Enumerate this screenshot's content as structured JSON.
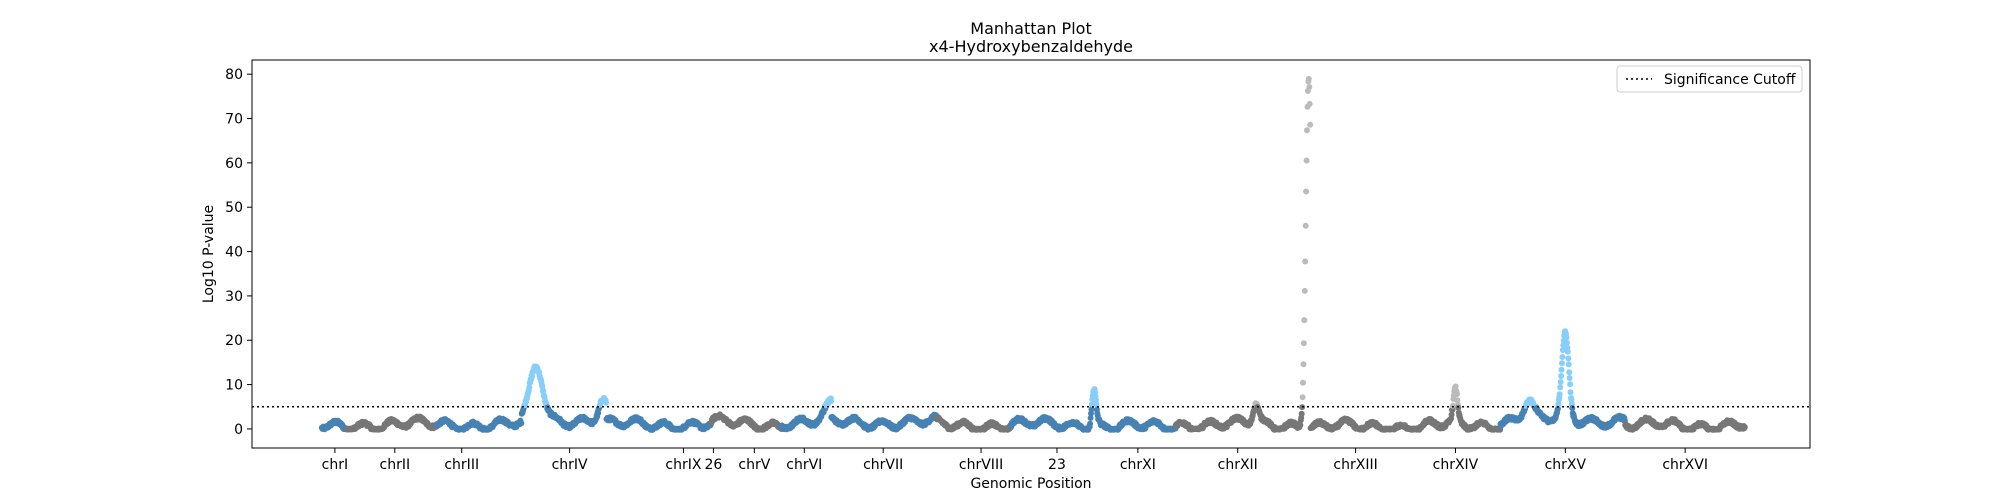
{
  "chart_data": {
    "type": "scatter",
    "title": "Manhattan Plot",
    "subtitle": "x4-Hydroxybenzaldehyde",
    "xlabel": "Genomic Position",
    "ylabel": "Log10 P-value",
    "ylim": [
      -4.3,
      83.2
    ],
    "yticks": [
      0,
      10,
      20,
      30,
      40,
      50,
      60,
      70,
      80
    ],
    "significance_cutoff": 5,
    "legend": {
      "position": "top-right",
      "entries": [
        {
          "label": "Significance Cutoff",
          "style": "dotted",
          "color": "#000000"
        }
      ]
    },
    "colors": {
      "odd_chromosome": "#4682b4",
      "even_chromosome": "#777777",
      "odd_significant": "#87cefa",
      "even_significant": "#bbbbbb"
    },
    "chromosomes": [
      {
        "tick_label": "chrI",
        "tick": 333,
        "start": 320,
        "end": 345,
        "parity": "odd",
        "baseline": 0.5
      },
      {
        "tick_label": "chrII",
        "tick": 393,
        "start": 345,
        "end": 435,
        "parity": "even",
        "baseline": 1.0
      },
      {
        "tick_label": "chrIII",
        "tick": 460,
        "start": 435,
        "end": 520,
        "parity": "odd",
        "baseline": 1.0
      },
      {
        "tick_label": "chrIV",
        "tick": 568,
        "start": 520,
        "end": 605,
        "parity": "odd",
        "baseline": 2.0
      },
      {
        "tick_label": "chrIX",
        "tick": 682,
        "start": 605,
        "end": 710,
        "parity": "odd",
        "baseline": 1.0
      },
      {
        "tick_label": "26",
        "tick": 712,
        "start": 710,
        "end": 730,
        "parity": "even",
        "baseline": 1.5
      },
      {
        "tick_label": "chrV",
        "tick": 753,
        "start": 730,
        "end": 780,
        "parity": "even",
        "baseline": 1.0
      },
      {
        "tick_label": "chrVI",
        "tick": 803,
        "start": 780,
        "end": 830,
        "parity": "odd",
        "baseline": 1.5
      },
      {
        "tick_label": "chrVII",
        "tick": 882,
        "start": 830,
        "end": 935,
        "parity": "odd",
        "baseline": 1.5
      },
      {
        "tick_label": "chrVIII",
        "tick": 980,
        "start": 935,
        "end": 1010,
        "parity": "even",
        "baseline": 0.8
      },
      {
        "tick_label": "23",
        "tick": 1056,
        "start": 1010,
        "end": 1100,
        "parity": "odd",
        "baseline": 1.0
      },
      {
        "tick_label": "chrXI",
        "tick": 1137,
        "start": 1100,
        "end": 1175,
        "parity": "odd",
        "baseline": 0.5
      },
      {
        "tick_label": "chrXII",
        "tick": 1237,
        "start": 1175,
        "end": 1310,
        "parity": "even",
        "baseline": 1.0
      },
      {
        "tick_label": "chrXIII",
        "tick": 1355,
        "start": 1310,
        "end": 1425,
        "parity": "even",
        "baseline": 0.5
      },
      {
        "tick_label": "chrXIV",
        "tick": 1455,
        "start": 1425,
        "end": 1500,
        "parity": "even",
        "baseline": 0.8
      },
      {
        "tick_label": "chrXV",
        "tick": 1565,
        "start": 1500,
        "end": 1625,
        "parity": "odd",
        "baseline": 2.0
      },
      {
        "tick_label": "chrXVI",
        "tick": 1685,
        "start": 1625,
        "end": 1745,
        "parity": "even",
        "baseline": 0.8
      }
    ],
    "peaks": [
      {
        "chromosome": "chrIV",
        "center": 535,
        "height": 12,
        "width": 9
      },
      {
        "chromosome": "chrIV",
        "center": 601,
        "height": 4.5,
        "width": 6
      },
      {
        "chromosome": "chrVI",
        "center": 832,
        "height": 4,
        "width": 10
      },
      {
        "chromosome": "23",
        "center": 1093,
        "height": 8.5,
        "width": 3
      },
      {
        "chromosome": "chrXII",
        "center": 1255,
        "height": 4.5,
        "width": 4
      },
      {
        "chromosome": "chrXII",
        "center": 1308,
        "height": 79,
        "width": 4
      },
      {
        "chromosome": "chrXIV",
        "center": 1455,
        "height": 7,
        "width": 3
      },
      {
        "chromosome": "chrXV",
        "center": 1565,
        "height": 18.5,
        "width": 5
      },
      {
        "chromosome": "chrXV",
        "center": 1528,
        "height": 4.5,
        "width": 7
      }
    ]
  }
}
